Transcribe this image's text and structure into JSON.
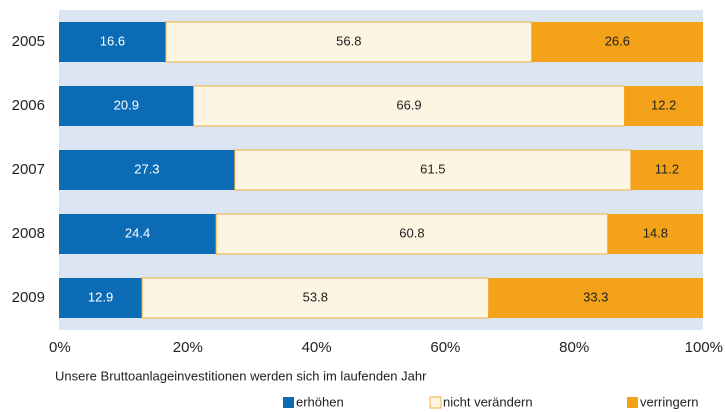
{
  "chart_data": {
    "type": "stacked-barh",
    "xlabel": "Unsere Bruttoanlageinvestitionen werden sich im laufenden Jahr",
    "categories": [
      "2005",
      "2006",
      "2007",
      "2008",
      "2009"
    ],
    "series": [
      {
        "name": "erhöhen",
        "color": "#0b6cb5",
        "values": [
          16.6,
          20.9,
          27.3,
          24.4,
          12.9
        ]
      },
      {
        "name": "nicht verändern",
        "color": "#fdf5e2",
        "values": [
          56.8,
          66.9,
          61.5,
          60.8,
          53.8
        ]
      },
      {
        "name": "verringern",
        "color": "#f5a21b",
        "values": [
          26.6,
          12.2,
          11.2,
          14.8,
          33.3
        ]
      }
    ],
    "xlim": [
      0,
      100
    ],
    "xticks": [
      {
        "value": 0,
        "label": "0%"
      },
      {
        "value": 20,
        "label": "20%"
      },
      {
        "value": 40,
        "label": "40%"
      },
      {
        "value": 60,
        "label": "60%"
      },
      {
        "value": 80,
        "label": "80%"
      },
      {
        "value": 100,
        "label": "100%"
      }
    ],
    "legend": "bottom"
  }
}
